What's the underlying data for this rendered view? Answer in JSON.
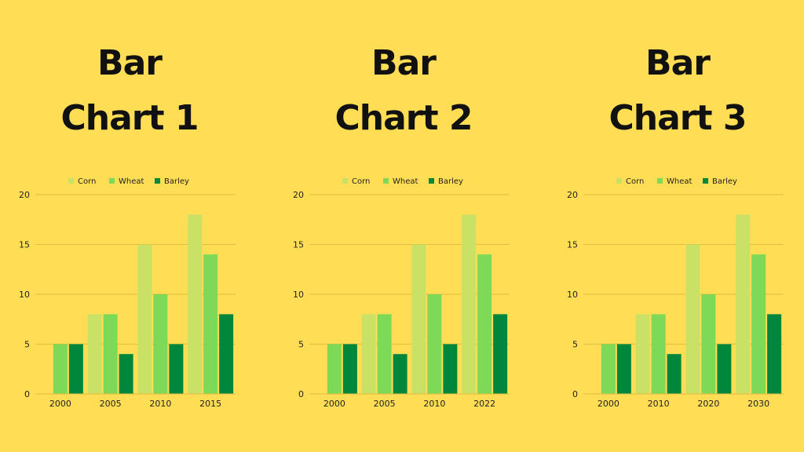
{
  "colors": {
    "background": "#FFDD55",
    "corn": "#C9E265",
    "wheat": "#7ED957",
    "barley": "#00873C",
    "grid": "#E0BC3F",
    "text": "#222222"
  },
  "chart_data": [
    {
      "type": "bar",
      "title_line1": "Bar",
      "title_line2": "Chart 1",
      "categories": [
        "2000",
        "2005",
        "2010",
        "2015"
      ],
      "series": [
        {
          "name": "Corn",
          "values": [
            0,
            8,
            15,
            18
          ]
        },
        {
          "name": "Wheat",
          "values": [
            5,
            8,
            10,
            14
          ]
        },
        {
          "name": "Barley",
          "values": [
            5,
            4,
            5,
            8
          ]
        }
      ],
      "ylim": [
        0,
        20
      ],
      "yticks": [
        0,
        5,
        10,
        15,
        20
      ],
      "grid": true,
      "legend": "top-center"
    },
    {
      "type": "bar",
      "title_line1": "Bar",
      "title_line2": "Chart 2",
      "categories": [
        "2000",
        "2005",
        "2010",
        "2022"
      ],
      "series": [
        {
          "name": "Corn",
          "values": [
            0,
            8,
            15,
            18
          ]
        },
        {
          "name": "Wheat",
          "values": [
            5,
            8,
            10,
            14
          ]
        },
        {
          "name": "Barley",
          "values": [
            5,
            4,
            5,
            8
          ]
        }
      ],
      "ylim": [
        0,
        20
      ],
      "yticks": [
        0,
        5,
        10,
        15,
        20
      ],
      "grid": true,
      "legend": "top-center"
    },
    {
      "type": "bar",
      "title_line1": "Bar",
      "title_line2": "Chart 3",
      "categories": [
        "2000",
        "2010",
        "2020",
        "2030"
      ],
      "series": [
        {
          "name": "Corn",
          "values": [
            0,
            8,
            15,
            18
          ]
        },
        {
          "name": "Wheat",
          "values": [
            5,
            8,
            10,
            14
          ]
        },
        {
          "name": "Barley",
          "values": [
            5,
            4,
            5,
            8
          ]
        }
      ],
      "ylim": [
        0,
        20
      ],
      "yticks": [
        0,
        5,
        10,
        15,
        20
      ],
      "grid": true,
      "legend": "top-center"
    }
  ]
}
